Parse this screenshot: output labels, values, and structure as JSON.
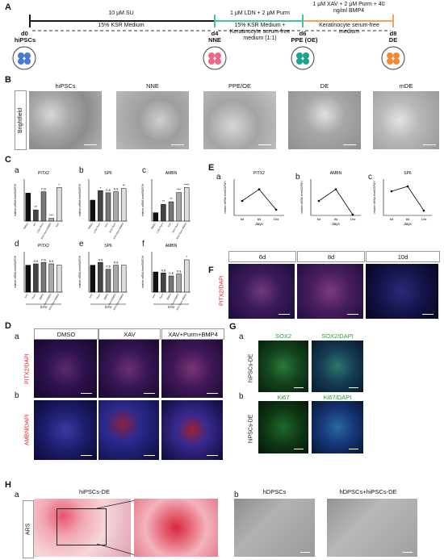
{
  "panel_A": {
    "label": "A",
    "day_labels": [
      "d0",
      "d4",
      "d6",
      "d8"
    ],
    "stage_labels": [
      "hiPSCs",
      "NNE",
      "PPE (OE)",
      "DE"
    ],
    "seg1_top": "10 μM SU",
    "seg1_bottom": "15% KSR Medium",
    "seg2_top": "1 μM LDN + 2 μM Purm",
    "seg2_bottom": "15% KSR Medium + Keratinocyte serum-free medium (1:1)",
    "seg3_top": "1 μM XAV + 2 μM Purm + 40 ng/ml BMP4",
    "seg3_bottom": "Keratinocyte serum-free medium",
    "colors": {
      "seg1": "#1a1a1a",
      "seg2": "#45c1a4",
      "seg3": "#f3a35a"
    }
  },
  "panel_B": {
    "label": "B",
    "row_label": "Brightfield",
    "titles": [
      "hiPSCs",
      "NNE",
      "PPE/OE",
      "DE",
      "mDE"
    ]
  },
  "panel_C": {
    "label": "C",
    "sublabels": [
      "a",
      "b",
      "c",
      "d",
      "e",
      "f"
    ],
    "titles": [
      "PITX2",
      "SP6",
      "AMBN",
      "PITX2",
      "SP6",
      "AMBN"
    ],
    "ylabel": "relative mRNA level/GAPDH",
    "group_label": "XAV"
  },
  "panel_E": {
    "label": "E",
    "sublabels": [
      "a",
      "b",
      "c"
    ],
    "titles": [
      "PITX2",
      "AMBN",
      "SP6"
    ],
    "ylabel": "relative mRNA level/GAPDH",
    "xlabel": "days",
    "ticks": [
      "6d",
      "8d",
      "10d"
    ]
  },
  "panel_F": {
    "label": "F",
    "headers": [
      "6d",
      "8d",
      "10d"
    ],
    "row_label": "PITX2/DAPI"
  },
  "panel_D": {
    "label": "D",
    "sublabels": [
      "a",
      "b"
    ],
    "headers": [
      "DMSO",
      "XAV",
      "XAV+Purm+BMP4"
    ],
    "row_labels": [
      "PITX2/DAPI",
      "AMBN/DAPI"
    ]
  },
  "panel_G": {
    "label": "G",
    "sublabels": [
      "a",
      "b"
    ],
    "row_a_headers": [
      "SOX2",
      "SOX2/DAPI"
    ],
    "row_b_headers": [
      "Ki67",
      "Ki67/DAPI"
    ],
    "row_label": "hiPSCs-DE"
  },
  "panel_H": {
    "label": "H",
    "sublabels": [
      "a",
      "b"
    ],
    "title_a": "hiPSCs-DE",
    "row_label": "ARS",
    "titles_b": [
      "hDPSCs",
      "hDPSCs+hiPSCs-DE"
    ]
  },
  "chart_data": [
    {
      "type": "bar",
      "title": "PITX2",
      "categories": [
        "DMSO",
        "SU",
        "LDN+Purm",
        "XAV+Purm+BMP4",
        "XAV"
      ],
      "values": [
        1.0,
        0.4,
        1.05,
        0.1,
        1.2
      ],
      "annotations": [
        "",
        "**",
        "n.s",
        "***",
        "*"
      ]
    },
    {
      "type": "bar",
      "title": "SP6",
      "categories": [
        "DMSO",
        "LDN+Purm",
        "XAV",
        "XAV+Purm",
        "XAV+Purm+BMP4"
      ],
      "values": [
        1.0,
        1.45,
        1.35,
        1.4,
        1.55
      ],
      "annotations": [
        "",
        "*",
        "n.s",
        "n.s",
        "**"
      ]
    },
    {
      "type": "bar",
      "title": "AMBN",
      "categories": [
        "DMSO",
        "LDN+Purm",
        "XAV",
        "XAV+Purm",
        "XAV+Purm+BMP4"
      ],
      "values": [
        1.0,
        2.0,
        2.3,
        3.4,
        4.0
      ],
      "annotations": [
        "",
        "**",
        "**",
        "***",
        "****"
      ]
    },
    {
      "type": "bar",
      "title": "PITX2",
      "categories": [
        "XAV",
        "Purm",
        "BMP4",
        "Purm+BMP4",
        "XAV+Purm+BMP4"
      ],
      "values": [
        1.0,
        1.05,
        1.1,
        1.05,
        1.0
      ],
      "annotations": [
        "",
        "n.s",
        "n.s",
        "n.s",
        ""
      ]
    },
    {
      "type": "bar",
      "title": "SP6",
      "categories": [
        "XAV",
        "Purm",
        "BMP4",
        "Purm+BMP4",
        "XAV+Purm+BMP4"
      ],
      "values": [
        1.0,
        1.1,
        0.85,
        1.0,
        1.0
      ],
      "annotations": [
        "",
        "n.s",
        "n.s",
        "n.s",
        ""
      ]
    },
    {
      "type": "bar",
      "title": "AMBN",
      "categories": [
        "XAV",
        "Purm",
        "BMP4",
        "Purm+BMP4",
        "XAV+Purm+BMP4"
      ],
      "values": [
        1.0,
        0.95,
        0.8,
        0.9,
        1.6
      ],
      "annotations": [
        "",
        "n.s",
        "n.s",
        "n.s",
        "*"
      ]
    },
    {
      "type": "line",
      "title": "PITX2",
      "x": [
        "6d",
        "8d",
        "10d"
      ],
      "y": [
        1.0,
        1.8,
        0.4
      ],
      "xlabel": "days"
    },
    {
      "type": "line",
      "title": "AMBN",
      "x": [
        "6d",
        "8d",
        "10d"
      ],
      "y": [
        1.0,
        1.8,
        0.05
      ],
      "xlabel": "days"
    },
    {
      "type": "line",
      "title": "SP6",
      "x": [
        "6d",
        "8d",
        "10d"
      ],
      "y": [
        1.0,
        1.2,
        0.2
      ],
      "xlabel": "days"
    }
  ]
}
